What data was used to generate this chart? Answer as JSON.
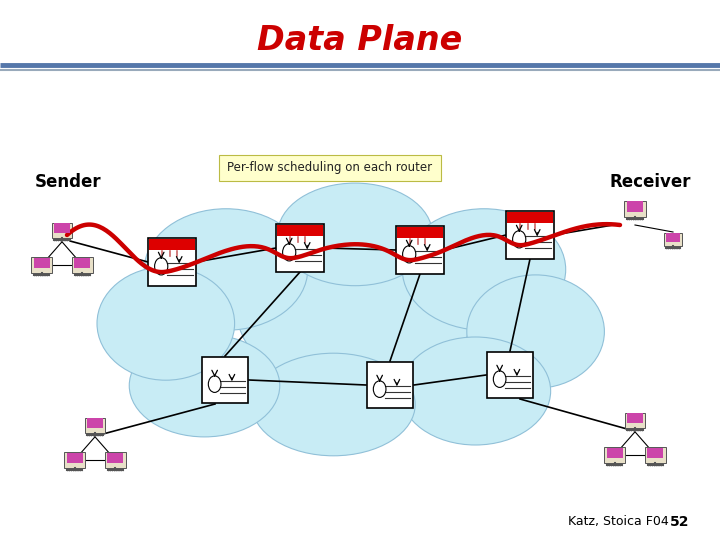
{
  "title": "Data Plane",
  "title_color": "#cc0000",
  "title_fontsize": 24,
  "bg_color": "#ffffff",
  "sender_label": "Sender",
  "receiver_label": "Receiver",
  "perflow_label": "Per-flow scheduling on each router",
  "footer_label": "Katz, Stoica F04",
  "footer_num": "52",
  "cloud_color": "#c8ecf5",
  "cloud_edge_color": "#90c0d8",
  "router_fill": "#ffffff",
  "router_edge": "#000000",
  "router_red": "#dd0000",
  "pc_fill": "#cc44aa",
  "line_color_red": "#cc0000",
  "line_color_black": "#000000",
  "header_line1": "#5577aa",
  "header_line2": "#99aabb"
}
